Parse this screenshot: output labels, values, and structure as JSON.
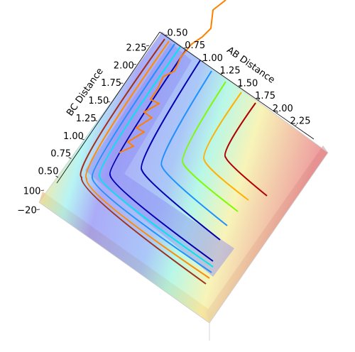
{
  "chart_data": {
    "type": "surface3d",
    "x_label": "AB Distance",
    "y_label": "BC Distance",
    "xlim": [
      0.5,
      2.25
    ],
    "xticks": [
      {
        "value": 0.5,
        "label": "0.50"
      },
      0.75,
      {
        "value": 1.0,
        "label": "1.00"
      },
      1.25,
      {
        "value": 1.5,
        "label": "1.50"
      },
      1.75,
      {
        "value": 2.0,
        "label": "2.00"
      },
      2.25
    ],
    "ylim": [
      0.5,
      2.25
    ],
    "yticks": [
      {
        "value": 0.5,
        "label": "0.50"
      },
      0.75,
      {
        "value": 1.0,
        "label": "1.00"
      },
      1.25,
      {
        "value": 1.5,
        "label": "1.50"
      },
      1.75,
      {
        "value": 2.0,
        "label": "2.00"
      },
      2.25
    ],
    "zlim": [
      -20,
      100
    ],
    "zticks": [
      {
        "value": -20,
        "label": "−20"
      },
      100
    ]
  }
}
